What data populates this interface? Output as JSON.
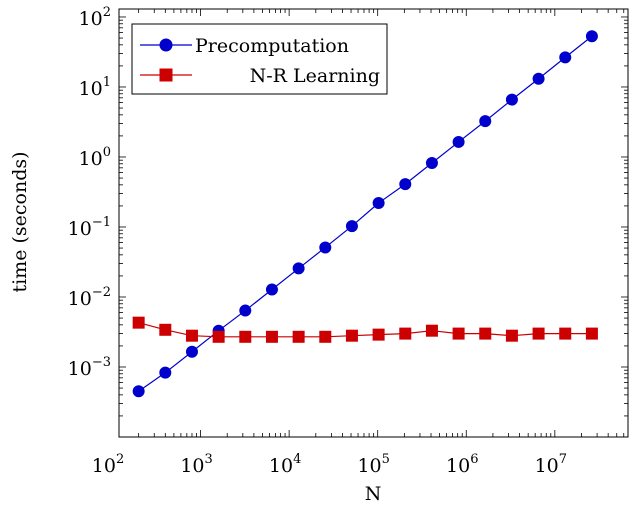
{
  "chart_data": {
    "type": "line",
    "xlabel": "N",
    "ylabel": "time (seconds)",
    "xscale": "log",
    "yscale": "log",
    "xlim": [
      120.0,
      67000000.0
    ],
    "ylim": [
      0.0001,
      130.0
    ],
    "grid": false,
    "legend_position": "top-left",
    "x_ticks": [
      {
        "value": 100,
        "base": "10",
        "exp": "2"
      },
      {
        "value": 1000,
        "base": "10",
        "exp": "3"
      },
      {
        "value": 10000,
        "base": "10",
        "exp": "4"
      },
      {
        "value": 100000,
        "base": "10",
        "exp": "5"
      },
      {
        "value": 1000000,
        "base": "10",
        "exp": "6"
      },
      {
        "value": 10000000,
        "base": "10",
        "exp": "7"
      }
    ],
    "y_ticks": [
      {
        "value": 0.001,
        "base": "10",
        "exp": "−3"
      },
      {
        "value": 0.01,
        "base": "10",
        "exp": "−2"
      },
      {
        "value": 0.1,
        "base": "10",
        "exp": "−1"
      },
      {
        "value": 1,
        "base": "10",
        "exp": "0"
      },
      {
        "value": 10,
        "base": "10",
        "exp": "1"
      },
      {
        "value": 100,
        "base": "10",
        "exp": "2"
      }
    ],
    "x": [
      200,
      400,
      800,
      1600,
      3200,
      6400,
      12800,
      25600,
      51200,
      102400,
      204800,
      409600,
      819200,
      1638400,
      3276800,
      6553600,
      13107200,
      26214400
    ],
    "series": [
      {
        "name": "Precomputation",
        "color": "#0000cc",
        "marker": "circle",
        "values": [
          0.00045,
          0.00083,
          0.00165,
          0.0033,
          0.0064,
          0.0128,
          0.0256,
          0.051,
          0.103,
          0.22,
          0.41,
          0.82,
          1.64,
          3.25,
          6.6,
          13.1,
          26.5,
          53
        ]
      },
      {
        "name": "N-R Learning",
        "color": "#cc0000",
        "marker": "square",
        "values": [
          0.0043,
          0.0034,
          0.0028,
          0.0027,
          0.0027,
          0.0027,
          0.0027,
          0.0027,
          0.0028,
          0.0029,
          0.003,
          0.0033,
          0.003,
          0.003,
          0.0028,
          0.003,
          0.003,
          0.003
        ]
      }
    ]
  }
}
